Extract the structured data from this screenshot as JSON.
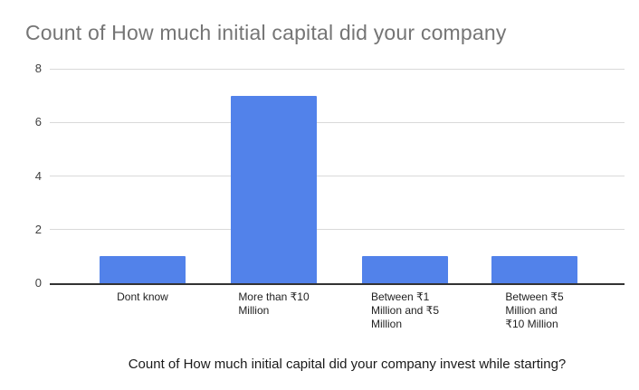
{
  "chart_data": {
    "type": "bar",
    "title": "Count of How much initial capital did your company",
    "categories": [
      "Dont know",
      "More than ₹10 Million",
      "Between ₹1 Million and ₹5 Million",
      "Between ₹5 Million and ₹10 Million"
    ],
    "category_lines": [
      "Dont know",
      "More than ₹10\nMillion",
      "Between ₹1\nMillion and ₹5\nMillion",
      "Between ₹5\nMillion and\n₹10 Million"
    ],
    "values": [
      1,
      7,
      1,
      1
    ],
    "xlabel": "Count of How much initial capital did your company invest while starting?",
    "ylabel": "",
    "ylim": [
      0,
      8
    ],
    "yticks": [
      0,
      2,
      4,
      6,
      8
    ],
    "grid": true,
    "legend": "none"
  },
  "colors": {
    "bar": "#5282ea",
    "gridline": "#d9d9d9",
    "baseline": "#333333",
    "title_text": "#757575",
    "ytick_text": "#404040",
    "xtick_text": "#1f1f1f",
    "axis_title_text": "#1a1a1a",
    "background": "#ffffff"
  }
}
